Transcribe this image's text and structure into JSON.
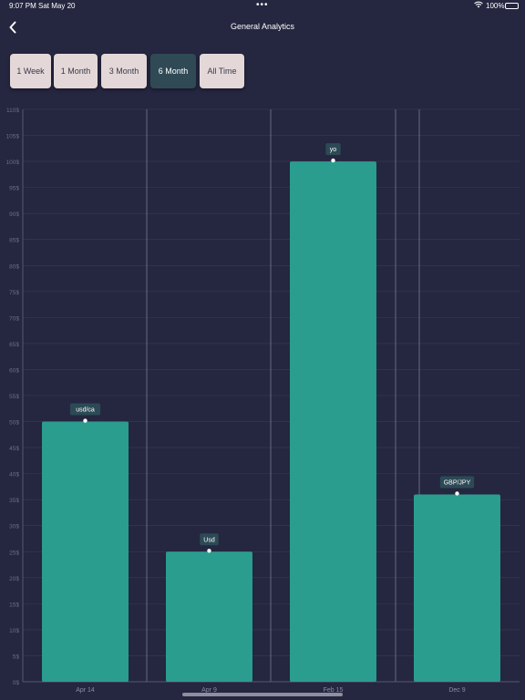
{
  "status_bar": {
    "time": "9:07 PM",
    "date": "Sat May 20",
    "dots": "•••",
    "battery": "100%"
  },
  "header": {
    "title": "General Analytics"
  },
  "range_tabs": [
    {
      "label": "1 Week",
      "active": false
    },
    {
      "label": "1 Month",
      "active": false
    },
    {
      "label": "3 Month",
      "active": false
    },
    {
      "label": "6 Month",
      "active": true
    },
    {
      "label": "All Time",
      "active": false
    }
  ],
  "colors": {
    "background": "#25263f",
    "bar": "#2a9d8f",
    "active_tab": "#2f4a55",
    "tab": "#e3d7d8"
  },
  "chart_data": {
    "type": "bar",
    "categories": [
      "Apr 14",
      "Apr 9",
      "Feb 15",
      "Dec 9"
    ],
    "values": [
      50,
      25,
      100,
      36
    ],
    "bar_labels": [
      "usd/ca",
      "Usd",
      "yo",
      "GBP/JPY"
    ],
    "ylim": [
      0,
      110
    ],
    "y_ticks": [
      "0$",
      "5$",
      "10$",
      "15$",
      "20$",
      "25$",
      "30$",
      "35$",
      "40$",
      "45$",
      "50$",
      "55$",
      "60$",
      "65$",
      "70$",
      "75$",
      "80$",
      "85$",
      "90$",
      "95$",
      "100$",
      "105$",
      "110$"
    ],
    "grid": true,
    "title": "",
    "xlabel": "",
    "ylabel": ""
  }
}
